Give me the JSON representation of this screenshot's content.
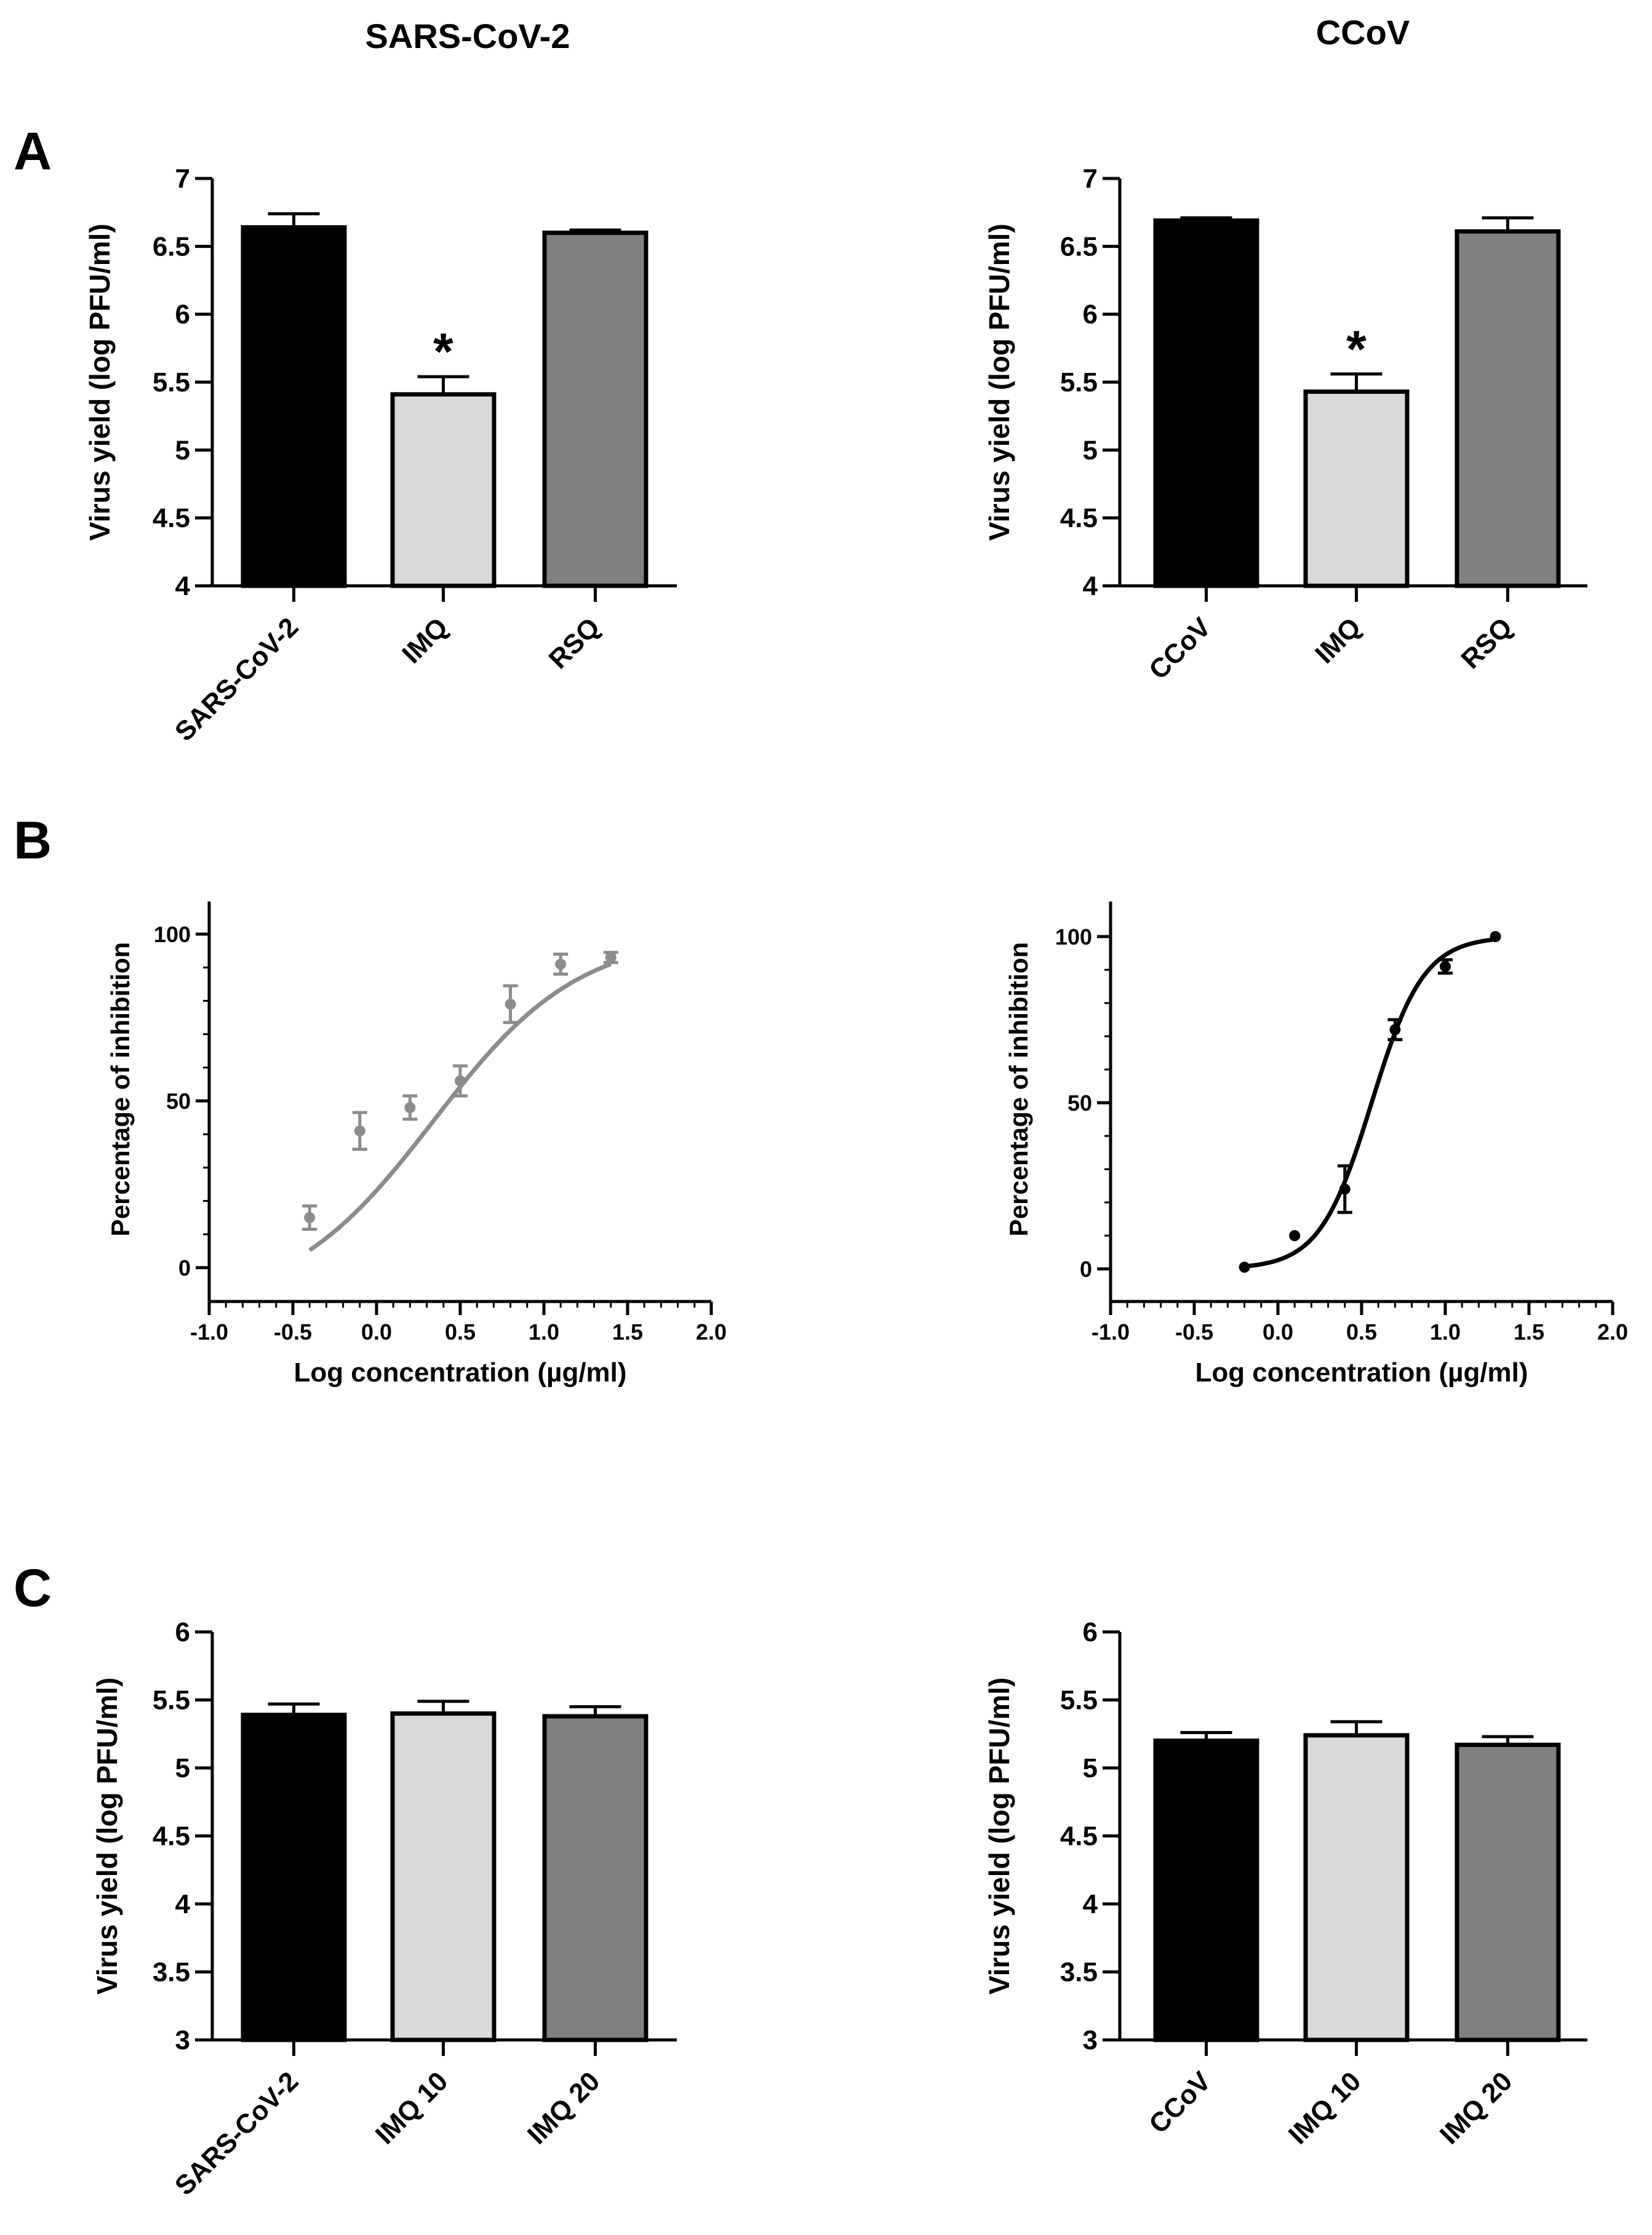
{
  "figure": {
    "column_titles": [
      "SARS-CoV-2",
      "CCoV"
    ],
    "panel_labels": [
      "A",
      "B",
      "C"
    ]
  },
  "colors": {
    "black": "#000000",
    "light_gray": "#d9d9d9",
    "dark_gray": "#808080",
    "curve_gray": "#8c8c8c"
  },
  "chart_data": [
    {
      "id": "A-left",
      "type": "bar",
      "categories": [
        "SARS-CoV-2",
        "IMQ",
        "RSQ"
      ],
      "values": [
        6.64,
        5.41,
        6.6
      ],
      "errors": [
        0.1,
        0.13,
        0.02
      ],
      "bar_colors": [
        "#000000",
        "#d9d9d9",
        "#808080"
      ],
      "annotations": [
        "",
        "*",
        ""
      ],
      "ylabel": "Virus yield (log PFU/ml)",
      "ylim": [
        4,
        7
      ],
      "yticks": [
        4,
        4.5,
        5,
        5.5,
        6,
        6.5,
        7
      ],
      "ytick_labels": [
        "4",
        "4.5",
        "5",
        "5.5",
        "6",
        "6.5",
        "7"
      ]
    },
    {
      "id": "A-right",
      "type": "bar",
      "categories": [
        "CCoV",
        "IMQ",
        "RSQ"
      ],
      "values": [
        6.69,
        5.43,
        6.61
      ],
      "errors": [
        0.02,
        0.13,
        0.1
      ],
      "bar_colors": [
        "#000000",
        "#d9d9d9",
        "#808080"
      ],
      "annotations": [
        "",
        "*",
        ""
      ],
      "ylabel": "Virus yield (log PFU/ml)",
      "ylim": [
        4,
        7
      ],
      "yticks": [
        4,
        4.5,
        5,
        5.5,
        6,
        6.5,
        7
      ],
      "ytick_labels": [
        "4",
        "4.5",
        "5",
        "5.5",
        "6",
        "6.5",
        "7"
      ]
    },
    {
      "id": "B-left",
      "type": "scatter",
      "color": "#8c8c8c",
      "x": [
        -0.4,
        -0.1,
        0.2,
        0.5,
        0.8,
        1.1,
        1.4
      ],
      "y": [
        15,
        41,
        48,
        56,
        79,
        91,
        93
      ],
      "errors": [
        3.5,
        5.5,
        3.5,
        4.5,
        5.5,
        3.0,
        1.5
      ],
      "curve": {
        "bottom": -12,
        "top": 100,
        "log_ic50": 0.34,
        "hill": 1.0,
        "x_range": [
          -0.4,
          1.4
        ]
      },
      "xlabel": "Log concentration (µg/ml)",
      "ylabel": "Percentage of inhibition",
      "xlim": [
        -1.0,
        2.0
      ],
      "ylim": [
        -10,
        110
      ],
      "xticks": [
        -1.0,
        -0.5,
        0.0,
        0.5,
        1.0,
        1.5,
        2.0
      ],
      "xtick_labels": [
        "-1.0",
        "-0.5",
        "0.0",
        "0.5",
        "1.0",
        "1.5",
        "2.0"
      ],
      "yticks": [
        0,
        50,
        100
      ],
      "ytick_labels": [
        "0",
        "50",
        "100"
      ]
    },
    {
      "id": "B-right",
      "type": "scatter",
      "color": "#000000",
      "x": [
        -0.2,
        0.1,
        0.4,
        0.7,
        1.0,
        1.3
      ],
      "y": [
        0.5,
        10,
        24,
        72,
        91,
        100
      ],
      "errors": [
        0,
        0,
        7,
        3,
        2,
        0
      ],
      "curve": {
        "bottom": 0,
        "top": 100,
        "log_ic50": 0.56,
        "hill": 2.8,
        "x_range": [
          -0.2,
          1.3
        ]
      },
      "xlabel": "Log concentration (µg/ml)",
      "ylabel": "Percentage of inhibition",
      "xlim": [
        -1.0,
        2.0
      ],
      "ylim": [
        -10,
        110
      ],
      "xticks": [
        -1.0,
        -0.5,
        0.0,
        0.5,
        1.0,
        1.5,
        2.0
      ],
      "xtick_labels": [
        "-1.0",
        "-0.5",
        "0.0",
        "0.5",
        "1.0",
        "1.5",
        "2.0"
      ],
      "yticks": [
        0,
        50,
        100
      ],
      "ytick_labels": [
        "0",
        "50",
        "100"
      ]
    },
    {
      "id": "C-left",
      "type": "bar",
      "categories": [
        "SARS-CoV-2",
        "IMQ 10",
        "IMQ 20"
      ],
      "values": [
        5.39,
        5.4,
        5.38
      ],
      "errors": [
        0.08,
        0.09,
        0.07
      ],
      "bar_colors": [
        "#000000",
        "#d9d9d9",
        "#808080"
      ],
      "annotations": [
        "",
        "",
        ""
      ],
      "ylabel": "Virus yield (log PFU/ml)",
      "ylim": [
        3,
        6
      ],
      "yticks": [
        3,
        3.5,
        4,
        4.5,
        5,
        5.5,
        6
      ],
      "ytick_labels": [
        "3",
        "3.5",
        "4",
        "4.5",
        "5",
        "5.5",
        "6"
      ]
    },
    {
      "id": "C-right",
      "type": "bar",
      "categories": [
        "CCoV",
        "IMQ 10",
        "IMQ 20"
      ],
      "values": [
        5.2,
        5.24,
        5.17
      ],
      "errors": [
        0.06,
        0.1,
        0.06
      ],
      "bar_colors": [
        "#000000",
        "#d9d9d9",
        "#808080"
      ],
      "annotations": [
        "",
        "",
        ""
      ],
      "ylabel": "Virus yield (log PFU/ml)",
      "ylim": [
        3,
        6
      ],
      "yticks": [
        3,
        3.5,
        4,
        4.5,
        5,
        5.5,
        6
      ],
      "ytick_labels": [
        "3",
        "3.5",
        "4",
        "4.5",
        "5",
        "5.5",
        "6"
      ]
    }
  ]
}
